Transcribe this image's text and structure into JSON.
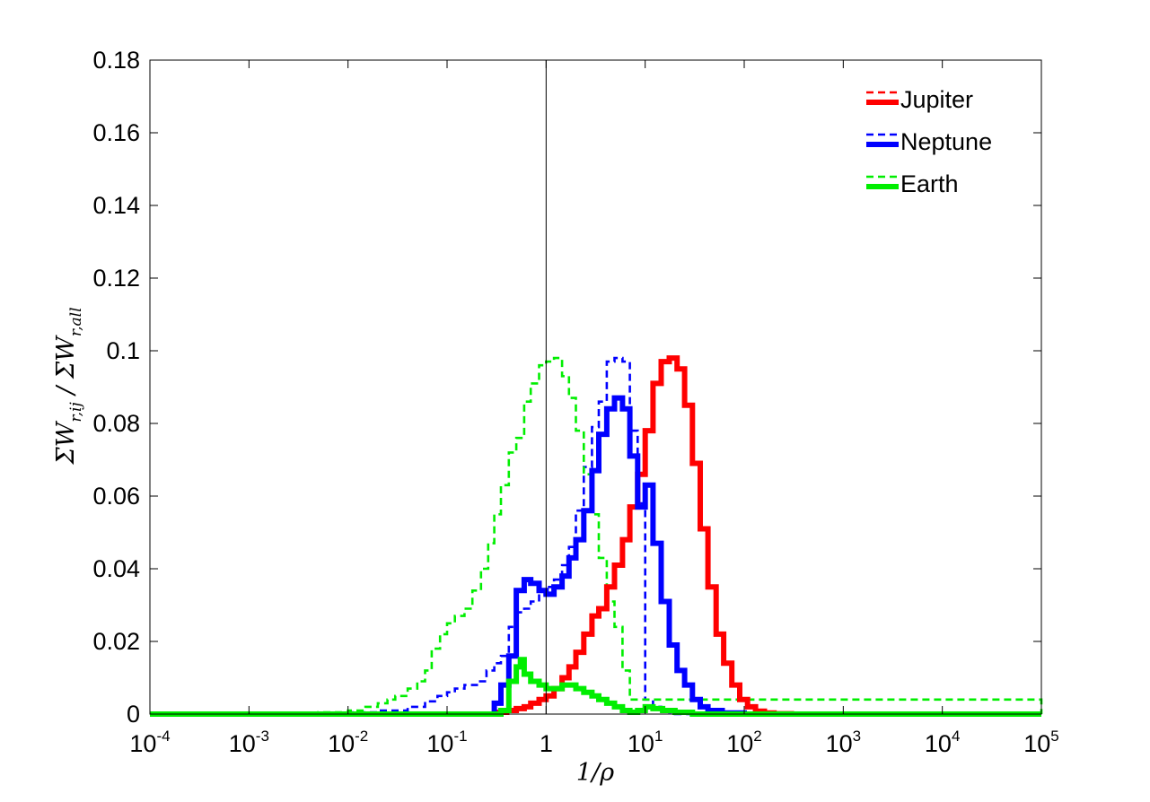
{
  "chart_data": {
    "type": "line",
    "step": true,
    "xscale": "log",
    "xlim": [
      0.0001,
      100000
    ],
    "ylim": [
      0,
      0.18
    ],
    "xlabel": "1/ρ",
    "ylabel": {
      "numerator_base": "ΣW",
      "numerator_sub": "r,ij",
      "separator": " / ",
      "denominator_base": "ΣW",
      "denominator_sub": "r,all"
    },
    "x_ticks": [
      {
        "base": "10",
        "exp": "-4"
      },
      {
        "base": "10",
        "exp": "-3"
      },
      {
        "base": "10",
        "exp": "-2"
      },
      {
        "base": "10",
        "exp": "-1"
      },
      {
        "base": "1",
        "exp": ""
      },
      {
        "base": "10",
        "exp": "1"
      },
      {
        "base": "10",
        "exp": "2"
      },
      {
        "base": "10",
        "exp": "3"
      },
      {
        "base": "10",
        "exp": "4"
      },
      {
        "base": "10",
        "exp": "5"
      }
    ],
    "y_ticks": [
      "0",
      "0.02",
      "0.04",
      "0.06",
      "0.08",
      "0.1",
      "0.12",
      "0.14",
      "0.16",
      "0.18"
    ],
    "reference_line_x": 1,
    "legend": {
      "placement": "top-right",
      "entries": [
        "Jupiter",
        "Neptune",
        "Earth"
      ]
    },
    "series": [
      {
        "name": "Jupiter",
        "style": "solid",
        "color": "#ff0000",
        "x": [
          0.3,
          0.4,
          0.5,
          0.6,
          0.7,
          0.85,
          1.0,
          1.2,
          1.45,
          1.7,
          2.0,
          2.4,
          2.9,
          3.4,
          4.1,
          4.9,
          5.9,
          7.0,
          8.4,
          10,
          12,
          14.5,
          17.5,
          21,
          25,
          30,
          36,
          43,
          52,
          62,
          75,
          90,
          108,
          130,
          160,
          200,
          300,
          1000,
          100000
        ],
        "y": [
          0.0005,
          0.001,
          0.0015,
          0.002,
          0.003,
          0.004,
          0.005,
          0.007,
          0.01,
          0.013,
          0.017,
          0.022,
          0.027,
          0.029,
          0.035,
          0.041,
          0.048,
          0.057,
          0.066,
          0.078,
          0.091,
          0.097,
          0.098,
          0.095,
          0.085,
          0.069,
          0.051,
          0.035,
          0.022,
          0.014,
          0.008,
          0.004,
          0.002,
          0.0008,
          0.0003,
          0.0001,
          0,
          0,
          0
        ]
      },
      {
        "name": "Jupiter",
        "style": "dashed",
        "color": "#ff0000",
        "x": [
          0.3,
          0.4,
          0.5,
          0.6,
          0.7,
          0.85,
          1.0,
          1.2,
          1.45,
          1.7,
          2.0,
          2.4,
          2.9,
          3.4,
          4.1,
          4.9,
          5.9,
          7.0,
          8.4,
          10,
          12,
          14.5,
          17.5,
          21,
          25,
          30,
          36,
          43,
          52,
          62,
          75,
          90,
          108,
          130,
          160,
          200,
          300,
          1000,
          100000
        ],
        "y": [
          0.0005,
          0.001,
          0.0015,
          0.002,
          0.003,
          0.004,
          0.005,
          0.007,
          0.01,
          0.013,
          0.017,
          0.022,
          0.027,
          0.029,
          0.035,
          0.041,
          0.048,
          0.057,
          0.066,
          0.078,
          0.091,
          0.097,
          0.098,
          0.095,
          0.085,
          0.069,
          0.051,
          0.035,
          0.022,
          0.014,
          0.008,
          0.004,
          0.002,
          0.0008,
          0.0003,
          0.0001,
          0,
          0,
          0
        ]
      },
      {
        "name": "Neptune",
        "style": "solid",
        "color": "#0000ff",
        "x": [
          0.0001,
          0.3,
          0.35,
          0.42,
          0.5,
          0.6,
          0.7,
          0.85,
          1.0,
          1.2,
          1.45,
          1.7,
          2.0,
          2.4,
          2.9,
          3.4,
          4.1,
          4.9,
          5.9,
          7.0,
          8.4,
          10,
          12,
          14.5,
          17.5,
          21,
          25,
          30,
          36,
          43,
          60,
          100,
          100000
        ],
        "y": [
          0,
          0.003,
          0.008,
          0.016,
          0.034,
          0.037,
          0.036,
          0.034,
          0.033,
          0.035,
          0.038,
          0.043,
          0.048,
          0.056,
          0.067,
          0.077,
          0.084,
          0.087,
          0.084,
          0.071,
          0.057,
          0.063,
          0.047,
          0.031,
          0.019,
          0.012,
          0.008,
          0.004,
          0.002,
          0.001,
          0.0003,
          0,
          0
        ]
      },
      {
        "name": "Neptune",
        "style": "dashed",
        "color": "#0000ff",
        "x": [
          0.0001,
          0.01,
          0.02,
          0.04,
          0.06,
          0.08,
          0.1,
          0.12,
          0.15,
          0.2,
          0.25,
          0.3,
          0.35,
          0.42,
          0.5,
          0.6,
          0.7,
          0.85,
          1.0,
          1.2,
          1.45,
          1.7,
          2.0,
          2.4,
          2.9,
          3.4,
          4.1,
          4.9,
          5.9,
          7.0,
          8.4,
          10,
          12,
          14.5,
          17.5,
          20,
          100000
        ],
        "y": [
          0,
          0.0005,
          0.001,
          0.002,
          0.0035,
          0.005,
          0.006,
          0.007,
          0.008,
          0.009,
          0.012,
          0.014,
          0.016,
          0.024,
          0.028,
          0.029,
          0.031,
          0.033,
          0.035,
          0.037,
          0.041,
          0.046,
          0.056,
          0.068,
          0.079,
          0.086,
          0.097,
          0.098,
          0.097,
          0.078,
          0.058,
          0.004,
          0.002,
          0.001,
          0.0005,
          0,
          0
        ]
      },
      {
        "name": "Earth",
        "style": "solid",
        "color": "#00ee00",
        "x": [
          0.0001,
          0.35,
          0.42,
          0.5,
          0.55,
          0.6,
          0.7,
          0.85,
          1.0,
          1.2,
          1.45,
          1.7,
          2.0,
          2.4,
          2.9,
          3.4,
          4.1,
          4.9,
          5.9,
          7.0,
          8.4,
          10,
          12,
          15,
          20,
          30,
          100000
        ],
        "y": [
          0,
          0.001,
          0.009,
          0.013,
          0.015,
          0.011,
          0.009,
          0.008,
          0.007,
          0.007,
          0.008,
          0.008,
          0.007,
          0.006,
          0.005,
          0.004,
          0.003,
          0.002,
          0.001,
          0.0005,
          0.001,
          0.002,
          0.0015,
          0.001,
          0.0005,
          0,
          0
        ]
      },
      {
        "name": "Earth",
        "style": "dashed",
        "color": "#00ee00",
        "x": [
          0.0001,
          0.005,
          0.01,
          0.015,
          0.02,
          0.025,
          0.03,
          0.04,
          0.05,
          0.06,
          0.07,
          0.085,
          0.1,
          0.12,
          0.15,
          0.18,
          0.22,
          0.26,
          0.3,
          0.35,
          0.42,
          0.5,
          0.6,
          0.7,
          0.85,
          1.0,
          1.2,
          1.45,
          1.7,
          2.0,
          2.4,
          2.9,
          3.4,
          4.1,
          4.9,
          5.9,
          7.0,
          100000
        ],
        "y": [
          0,
          0.0005,
          0.001,
          0.002,
          0.003,
          0.004,
          0.005,
          0.007,
          0.009,
          0.012,
          0.018,
          0.022,
          0.025,
          0.027,
          0.029,
          0.034,
          0.04,
          0.047,
          0.055,
          0.063,
          0.072,
          0.076,
          0.086,
          0.091,
          0.096,
          0.097,
          0.098,
          0.093,
          0.087,
          0.078,
          0.066,
          0.055,
          0.043,
          0.031,
          0.024,
          0.012,
          0.004,
          0
        ]
      }
    ]
  }
}
